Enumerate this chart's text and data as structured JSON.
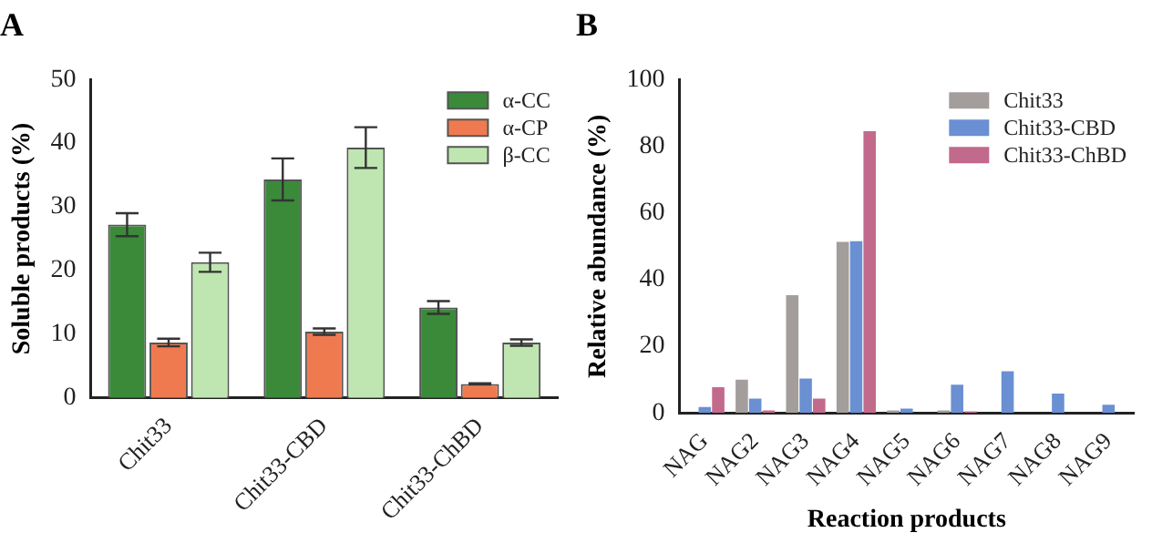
{
  "chart_data": [
    {
      "type": "bar",
      "title": "A",
      "ylabel": "Soluble products (%)",
      "categories": [
        "Chit33",
        "Chit33-CBD",
        "Chit33-ChBD"
      ],
      "series": [
        {
          "name": "α-CC",
          "color": "#3a8a3a",
          "values": [
            27.2,
            34.3,
            14.2
          ],
          "errors": [
            1.8,
            3.3,
            1.0
          ]
        },
        {
          "name": "α-CP",
          "color": "#f07a50",
          "values": [
            8.7,
            10.4,
            2.2
          ],
          "errors": [
            0.6,
            0.5,
            0.1
          ]
        },
        {
          "name": "β-CC",
          "color": "#bfe6b0",
          "values": [
            21.3,
            39.3,
            8.7
          ],
          "errors": [
            1.5,
            3.2,
            0.5
          ]
        }
      ],
      "ylim": [
        0,
        50
      ],
      "yticks": [
        0,
        10,
        20,
        30,
        40,
        50
      ],
      "grid": false,
      "legend": "top right"
    },
    {
      "type": "bar",
      "title": "B",
      "xlabel": "Reaction products",
      "ylabel": "Relative abundance (%)",
      "categories": [
        "NAG",
        "NAG2",
        "NAG3",
        "NAG4",
        "NAG5",
        "NAG6",
        "NAG7",
        "NAG8",
        "NAG9"
      ],
      "series": [
        {
          "name": "Chit33",
          "color": "#a39d9b",
          "values": [
            0,
            10,
            35.3,
            51.3,
            0.8,
            0.8,
            0,
            0,
            0
          ]
        },
        {
          "name": "Chit33-CBD",
          "color": "#6a8fd2",
          "values": [
            1.8,
            4.3,
            10.3,
            51.5,
            1.3,
            8.5,
            12.5,
            5.8,
            2.5
          ]
        },
        {
          "name": "Chit33-ChBD",
          "color": "#c26a8c",
          "values": [
            7.7,
            0.8,
            4.3,
            84.5,
            0,
            0.5,
            0,
            0,
            0
          ]
        }
      ],
      "ylim": [
        0,
        100
      ],
      "yticks": [
        0,
        20,
        40,
        60,
        80,
        100
      ],
      "grid": false,
      "legend": "top right"
    }
  ]
}
